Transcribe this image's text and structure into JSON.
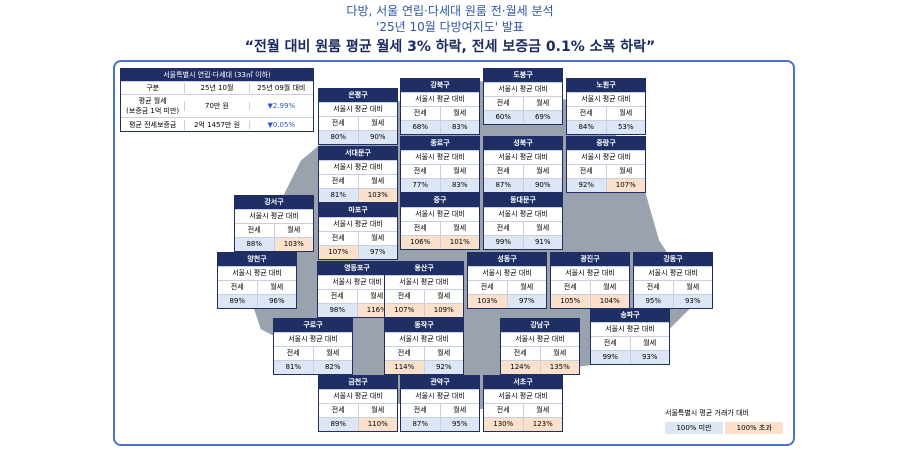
{
  "header": {
    "line1": "다방, 서울 연립·다세대 원룸 전·월세 분석",
    "line2": "'25년 10월 다방여지도' 발표",
    "line3": "“전월 대비 원룸 평균 월세 3% 하락, 전세 보증금 0.1% 소폭 하락”"
  },
  "summary": {
    "title": "서울특별시 연립·다세대 (33㎡ 이하)",
    "columns": [
      "구분",
      "25년 10월",
      "25년 09월 대비"
    ],
    "rows": [
      [
        "평균 월세",
        "(보증금 1억 미만)",
        "70만 원",
        "▼2.99%"
      ],
      [
        "평균 전세보증금",
        "2억 1457만 원",
        "▼0.05%"
      ]
    ]
  },
  "card_labels": {
    "sub": "서울시 평균 대비",
    "jeonse": "전세",
    "wolse": "월세"
  },
  "districts": [
    {
      "name": "은평구",
      "jeonse": "80%",
      "wolse": "90%"
    },
    {
      "name": "강북구",
      "jeonse": "68%",
      "wolse": "83%"
    },
    {
      "name": "도봉구",
      "jeonse": "60%",
      "wolse": "69%"
    },
    {
      "name": "노원구",
      "jeonse": "84%",
      "wolse": "53%"
    },
    {
      "name": "서대문구",
      "jeonse": "81%",
      "wolse": "103%"
    },
    {
      "name": "종로구",
      "jeonse": "77%",
      "wolse": "83%"
    },
    {
      "name": "성북구",
      "jeonse": "87%",
      "wolse": "90%"
    },
    {
      "name": "중랑구",
      "jeonse": "92%",
      "wolse": "107%"
    },
    {
      "name": "강서구",
      "jeonse": "88%",
      "wolse": "103%"
    },
    {
      "name": "마포구",
      "jeonse": "107%",
      "wolse": "97%"
    },
    {
      "name": "중구",
      "jeonse": "106%",
      "wolse": "101%"
    },
    {
      "name": "동대문구",
      "jeonse": "99%",
      "wolse": "91%"
    },
    {
      "name": "양천구",
      "jeonse": "89%",
      "wolse": "96%"
    },
    {
      "name": "영등포구",
      "jeonse": "98%",
      "wolse": "116%"
    },
    {
      "name": "용산구",
      "jeonse": "107%",
      "wolse": "109%"
    },
    {
      "name": "성동구",
      "jeonse": "103%",
      "wolse": "97%"
    },
    {
      "name": "광진구",
      "jeonse": "105%",
      "wolse": "104%"
    },
    {
      "name": "강동구",
      "jeonse": "95%",
      "wolse": "93%"
    },
    {
      "name": "구로구",
      "jeonse": "81%",
      "wolse": "82%"
    },
    {
      "name": "동작구",
      "jeonse": "114%",
      "wolse": "92%"
    },
    {
      "name": "강남구",
      "jeonse": "124%",
      "wolse": "135%"
    },
    {
      "name": "송파구",
      "jeonse": "99%",
      "wolse": "93%"
    },
    {
      "name": "금천구",
      "jeonse": "89%",
      "wolse": "110%"
    },
    {
      "name": "관악구",
      "jeonse": "87%",
      "wolse": "95%"
    },
    {
      "name": "서초구",
      "jeonse": "130%",
      "wolse": "123%"
    }
  ],
  "legend": {
    "title": "서울특별시 평균 거래가 대비",
    "under": "100% 미만",
    "over": "100% 초과"
  }
}
